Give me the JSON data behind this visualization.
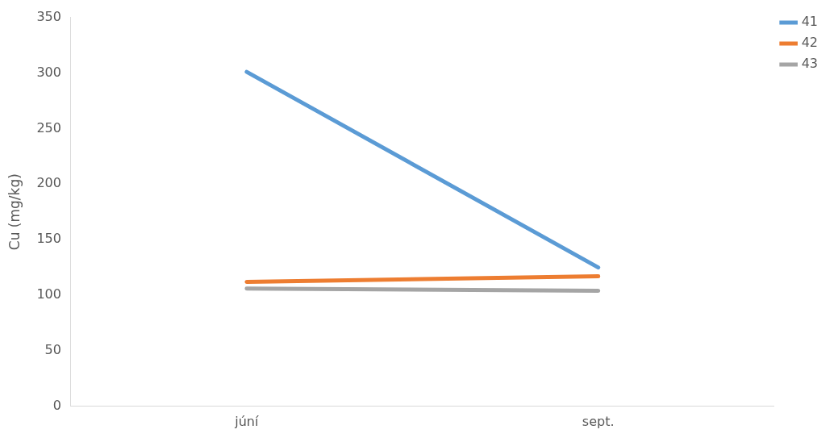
{
  "chart_data": {
    "type": "line",
    "ylabel": "Cu (mg/kg)",
    "categories": [
      "júní",
      "sept."
    ],
    "series": [
      {
        "name": "41",
        "color": "#5b9bd5",
        "values": [
          301,
          125
        ]
      },
      {
        "name": "42",
        "color": "#ed7d31",
        "values": [
          112,
          117
        ]
      },
      {
        "name": "43",
        "color": "#a5a5a5",
        "values": [
          106,
          104
        ]
      }
    ],
    "ylim": [
      0,
      350
    ],
    "yticks": [
      0,
      50,
      100,
      150,
      200,
      250,
      300,
      350
    ],
    "grid": false,
    "legend": "top right",
    "marker": "none",
    "line_style": "solid"
  }
}
